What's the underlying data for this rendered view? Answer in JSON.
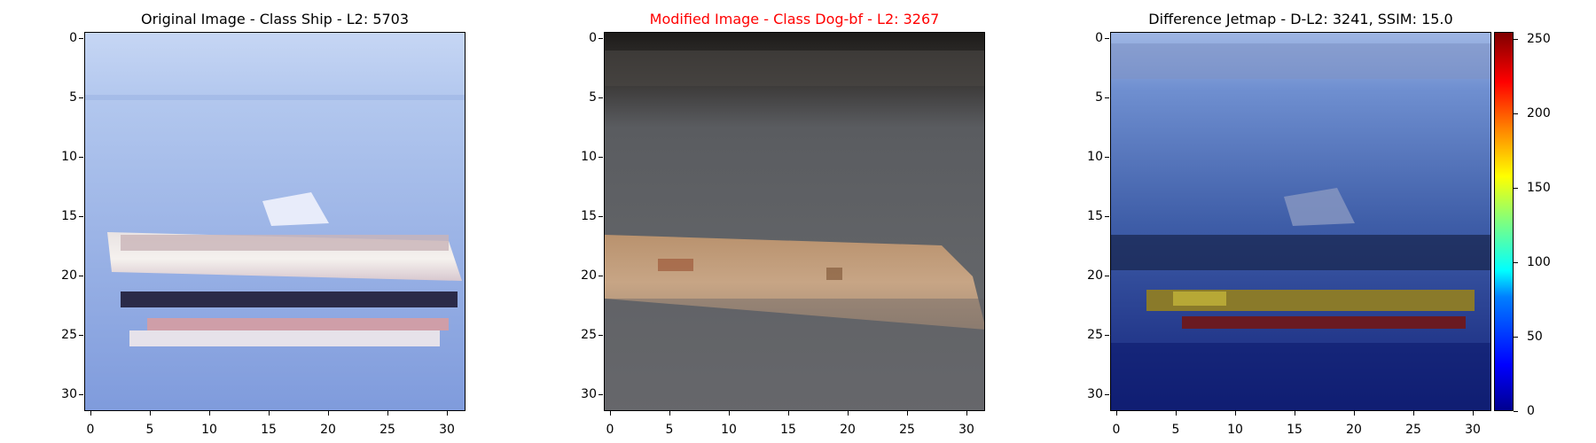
{
  "panels": [
    {
      "title": "Original Image - Class Ship - L2: 5703",
      "title_color": "#000000"
    },
    {
      "title": "Modified Image - Class Dog-bf - L2: 3267",
      "title_color": "#ff0000"
    },
    {
      "title": "Difference Jetmap - D-L2: 3241, SSIM: 15.0",
      "title_color": "#000000"
    }
  ],
  "axis_ticks": [
    "0",
    "5",
    "10",
    "15",
    "20",
    "25",
    "30"
  ],
  "colorbar_ticks": [
    "0",
    "50",
    "100",
    "150",
    "200",
    "250"
  ]
}
